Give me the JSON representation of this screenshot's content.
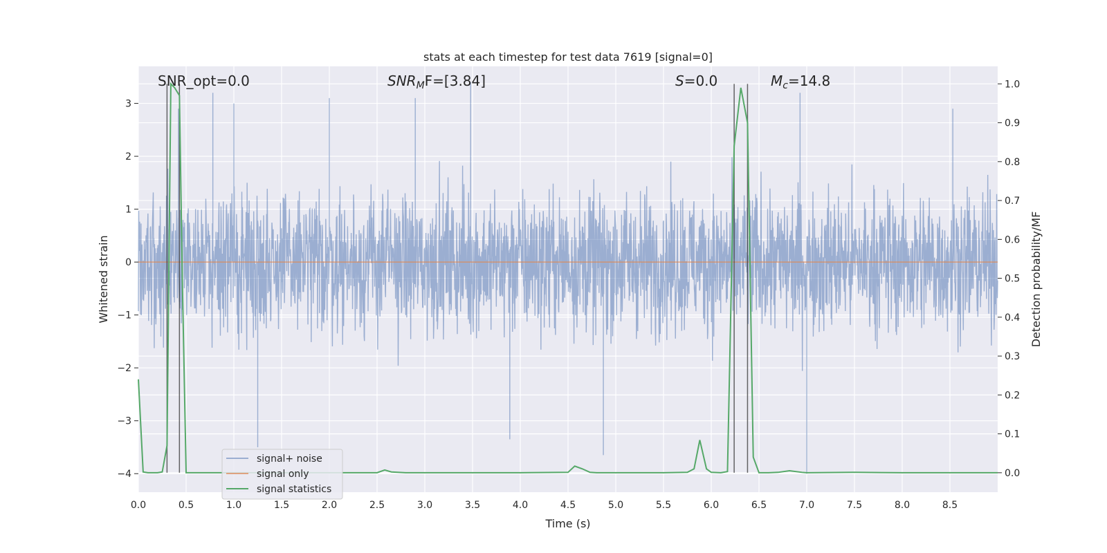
{
  "chart_data": {
    "type": "line",
    "title": "stats at each timestep for test data 7619 [signal=0]",
    "xlabel": "Time (s)",
    "ylabel": "Whitened strain",
    "y2label": "Detection probability/MF",
    "xlim": [
      0.0,
      9.0
    ],
    "ylim": [
      -4.35,
      3.7
    ],
    "y2lim": [
      -0.05,
      1.045
    ],
    "xticks": [
      "0.0",
      "0.5",
      "1.0",
      "1.5",
      "2.0",
      "2.5",
      "3.0",
      "3.5",
      "4.0",
      "4.5",
      "5.0",
      "5.5",
      "6.0",
      "6.5",
      "7.0",
      "7.5",
      "8.0",
      "8.5"
    ],
    "yticks": [
      "3",
      "2",
      "1",
      "0",
      "−1",
      "−2",
      "−3",
      "−4"
    ],
    "y2ticks": [
      "1.0",
      "0.9",
      "0.8",
      "0.7",
      "0.6",
      "0.5",
      "0.4",
      "0.3",
      "0.2",
      "0.1",
      "0.0"
    ],
    "grid": true,
    "legend_position": "lower-left",
    "annotations": {
      "snr_opt": "SNR_opt=0.0",
      "snr_mf_main": "SNR",
      "snr_mf_sub": "M",
      "snr_mf_rest": "F=[3.84]",
      "s_italic": "S",
      "s_rest": "=0.0",
      "mc_main": "M",
      "mc_sub": "c",
      "mc_rest": "=14.8"
    },
    "vertical_lines_x": [
      0.3,
      0.43,
      6.24,
      6.38
    ],
    "series": [
      {
        "name": "signal+ noise",
        "color": "#4c72b0",
        "noise_envelope": {
          "typical_abs": 1.2,
          "peak_abs": 3.4
        },
        "peaks": [
          {
            "x": 0.42,
            "y": 2.9
          },
          {
            "x": 0.78,
            "y": 3.2
          },
          {
            "x": 1.0,
            "y": 3.0
          },
          {
            "x": 2.0,
            "y": 3.1
          },
          {
            "x": 2.9,
            "y": 3.1
          },
          {
            "x": 3.48,
            "y": 3.4
          },
          {
            "x": 4.87,
            "y": -3.65
          },
          {
            "x": 6.93,
            "y": 3.2
          },
          {
            "x": 7.0,
            "y": -4.0
          },
          {
            "x": 8.53,
            "y": 2.9
          },
          {
            "x": 1.25,
            "y": -3.5
          },
          {
            "x": 3.89,
            "y": -3.35
          }
        ]
      },
      {
        "name": "signal only",
        "color": "#dd8452",
        "x": [
          0.0,
          9.0
        ],
        "y": [
          0.0,
          0.0
        ]
      },
      {
        "name": "signal statistics",
        "color": "#55a868",
        "x": [
          0.0,
          0.05,
          0.1,
          0.15,
          0.2,
          0.25,
          0.3,
          0.34,
          0.38,
          0.43,
          0.46,
          0.5,
          0.6,
          0.8,
          1.0,
          1.5,
          2.0,
          2.5,
          2.58,
          2.65,
          2.8,
          3.0,
          3.5,
          4.0,
          4.5,
          4.57,
          4.65,
          4.73,
          4.8,
          5.0,
          5.5,
          5.75,
          5.82,
          5.88,
          5.95,
          6.0,
          6.1,
          6.17,
          6.24,
          6.31,
          6.38,
          6.44,
          6.5,
          6.6,
          6.7,
          6.82,
          6.95,
          7.0,
          7.5,
          8.0,
          8.5,
          9.0
        ],
        "y": [
          0.24,
          0.002,
          0.0,
          0.0,
          0.0,
          0.002,
          0.07,
          1.0,
          0.99,
          0.97,
          0.5,
          0.0,
          0.0,
          0.0,
          0.0,
          0.0,
          0.0,
          0.0,
          0.007,
          0.002,
          0.0,
          0.0,
          0.0,
          0.0,
          0.001,
          0.017,
          0.01,
          0.001,
          0.0,
          0.0,
          0.0,
          0.001,
          0.01,
          0.084,
          0.01,
          0.001,
          0.0,
          0.003,
          0.84,
          0.99,
          0.9,
          0.04,
          0.0,
          0.0,
          0.001,
          0.005,
          0.001,
          0.0,
          0.001,
          0.0,
          0.0,
          0.0
        ]
      }
    ]
  }
}
